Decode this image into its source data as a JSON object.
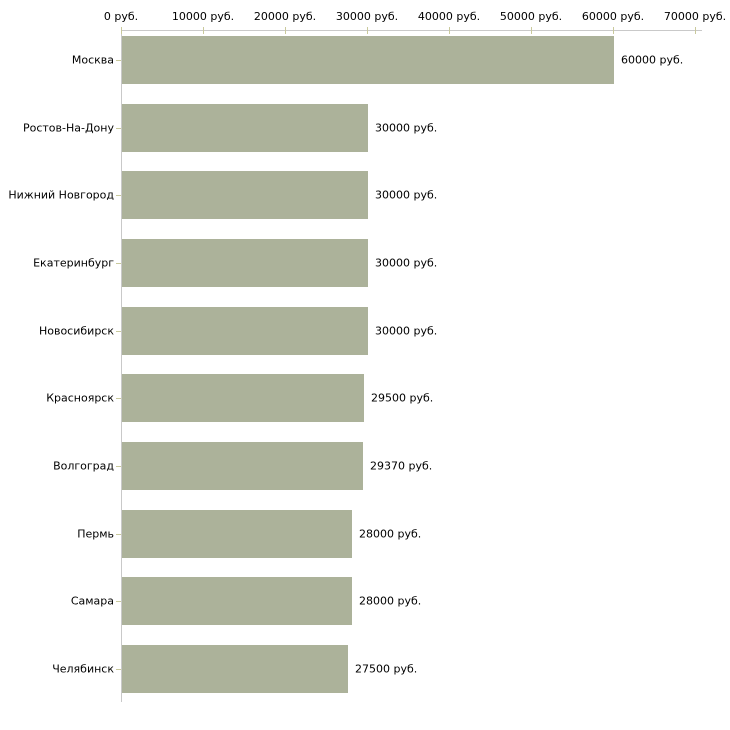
{
  "chart_data": {
    "type": "bar",
    "orientation": "horizontal",
    "title": "",
    "categories": [
      "Москва",
      "Ростов-На-Дону",
      "Нижний Новгород",
      "Екатеринбург",
      "Новосибирск",
      "Красноярск",
      "Волгоград",
      "Пермь",
      "Самара",
      "Челябинск"
    ],
    "values": [
      60000,
      30000,
      30000,
      30000,
      30000,
      29500,
      29370,
      28000,
      28000,
      27500
    ],
    "value_labels": [
      "60000 руб.",
      "30000 руб.",
      "30000 руб.",
      "30000 руб.",
      "30000 руб.",
      "29500 руб.",
      "29370 руб.",
      "28000 руб.",
      "28000 руб.",
      "27500 руб."
    ],
    "unit": "руб.",
    "xlabel": "",
    "ylabel": "",
    "xlim": [
      0,
      70000
    ],
    "x_ticks": [
      0,
      10000,
      20000,
      30000,
      40000,
      50000,
      60000,
      70000
    ],
    "x_tick_labels": [
      "0 руб.",
      "10000 руб.",
      "20000 руб.",
      "30000 руб.",
      "40000 руб.",
      "50000 руб.",
      "60000 руб.",
      "70000 руб."
    ],
    "grid": false,
    "legend": null,
    "colors": {
      "bar": "#acb29a",
      "axis_line": "#c9c9c9",
      "tick": "#c9c99c",
      "text": "#000000",
      "background": "#ffffff"
    }
  }
}
